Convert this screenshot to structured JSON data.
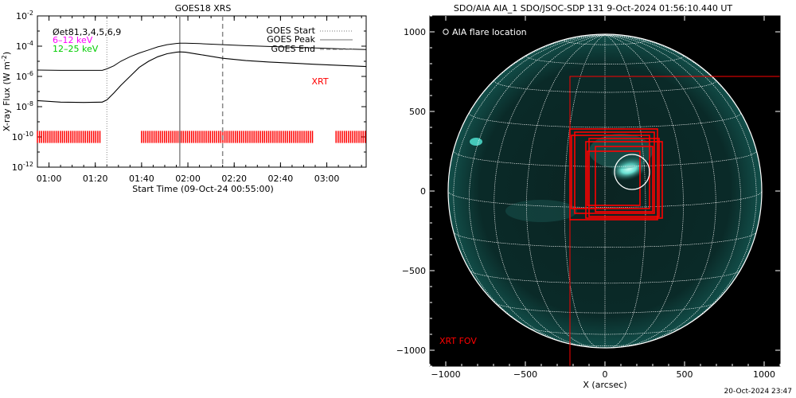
{
  "chart_data": [
    {
      "type": "line",
      "title": "GOES18 XRS",
      "xlabel": "Start Time (09-Oct-24 00:55:00)",
      "ylabel_parts": [
        "X-ray Flux (W m",
        "-2",
        ")"
      ],
      "x_ticks": [
        "01:00",
        "01:20",
        "01:40",
        "02:00",
        "02:20",
        "02:40",
        "03:00"
      ],
      "x_tick_minutes": [
        5,
        25,
        45,
        65,
        85,
        105,
        125
      ],
      "x_range_minutes": [
        0,
        142
      ],
      "y_scale": "log",
      "y_range_exp": [
        -12,
        -2
      ],
      "y_ticks": [
        {
          "base": "10",
          "exp": "-12"
        },
        {
          "base": "10",
          "exp": "-10"
        },
        {
          "base": "10",
          "exp": "-8"
        },
        {
          "base": "10",
          "exp": "-6"
        },
        {
          "base": "10",
          "exp": "-4"
        },
        {
          "base": "10",
          "exp": "-2"
        }
      ],
      "y_tick_exps": [
        -12,
        -10,
        -8,
        -6,
        -4,
        -2
      ],
      "legend_left": [
        {
          "text": "Øet81,3,4,5,6,9",
          "color": "#000000"
        },
        {
          "text": "6–12 keV",
          "color": "#ff00ff"
        },
        {
          "text": "12–25 keV",
          "color": "#00cc00"
        }
      ],
      "legend_right": [
        {
          "text": "GOES Start",
          "style": "dotted"
        },
        {
          "text": "GOES Peak",
          "style": "solid"
        },
        {
          "text": "GOES End",
          "style": "dashed"
        }
      ],
      "annotation": {
        "text": "XRT",
        "color": "#ff0000"
      },
      "events_minutes": {
        "start": 30,
        "peak": 61.5,
        "end": 80
      },
      "series": [
        {
          "x": [
            0,
            10,
            20,
            28,
            30,
            33,
            36,
            40,
            44,
            48,
            52,
            56,
            60,
            61.5,
            64,
            70,
            80,
            90,
            100,
            110,
            120,
            130,
            142
          ],
          "y_exp": [
            -5.58,
            -5.6,
            -5.6,
            -5.6,
            -5.5,
            -5.3,
            -5.0,
            -4.7,
            -4.45,
            -4.25,
            -4.05,
            -3.9,
            -3.82,
            -3.8,
            -3.8,
            -3.83,
            -3.9,
            -3.97,
            -4.02,
            -4.07,
            -4.12,
            -4.17,
            -4.22
          ]
        },
        {
          "x": [
            0,
            10,
            20,
            28,
            30,
            33,
            36,
            40,
            44,
            48,
            52,
            56,
            60,
            61.5,
            64,
            70,
            80,
            90,
            100,
            110,
            120,
            130,
            142
          ],
          "y_exp": [
            -7.6,
            -7.7,
            -7.72,
            -7.7,
            -7.55,
            -7.1,
            -6.6,
            -6.0,
            -5.4,
            -5.0,
            -4.7,
            -4.5,
            -4.4,
            -4.38,
            -4.4,
            -4.55,
            -4.8,
            -4.95,
            -5.05,
            -5.12,
            -5.2,
            -5.27,
            -5.35
          ]
        }
      ],
      "xrt_coverage_minutes": [
        [
          0,
          27
        ],
        [
          45,
          119
        ],
        [
          129,
          142
        ]
      ],
      "xrt_coverage_gaps_in": [
        [
          32,
          42
        ]
      ]
    },
    {
      "type": "scatter",
      "title": "SDO/AIA AIA_1 SDO/JSOC-SDP 131  9-Oct-2024 01:56:10.440 UT",
      "xlabel": "X (arcsec)",
      "ylabel": "",
      "xlim": [
        -1100,
        1100
      ],
      "ylim": [
        -1100,
        1100
      ],
      "x_ticks": [
        "−1000",
        "−500",
        "0",
        "500",
        "1000"
      ],
      "y_ticks": [
        "1000",
        "500",
        "0",
        "−500",
        "−1000"
      ],
      "tick_values": [
        -1000,
        -500,
        0,
        500,
        1000
      ],
      "solar_radius_arcsec": 985,
      "flare_location": {
        "x": 170,
        "y": 120,
        "radius_arcsec": 110
      },
      "flare_label": "AIA flare location",
      "fov_label": "XRT FOV",
      "xrt_fov_box": {
        "x0": -220,
        "x1": 1100,
        "y0": 720,
        "y1": -1100
      },
      "xrt_small_boxes": [
        {
          "x0": -220,
          "y0": 390,
          "x1": 330,
          "y1": -180
        },
        {
          "x0": -190,
          "y0": 370,
          "x1": 310,
          "y1": -140
        },
        {
          "x0": -120,
          "y0": 310,
          "x1": 360,
          "y1": -170
        },
        {
          "x0": -110,
          "y0": 250,
          "x1": 220,
          "y1": -90
        },
        {
          "x0": -60,
          "y0": 280,
          "x1": 300,
          "y1": -130
        },
        {
          "x0": -210,
          "y0": 350,
          "x1": 280,
          "y1": -110
        },
        {
          "x0": -100,
          "y0": 330,
          "x1": 340,
          "y1": -160
        }
      ]
    }
  ],
  "footer_timestamp": "20-Oct-2024 23:47",
  "colors": {
    "flux_line": "#000000",
    "xrt_red": "#ff0000",
    "disk_bg": "#000000",
    "grid_white": "#ffffff",
    "emission_cyan": "#3fd6c8"
  }
}
